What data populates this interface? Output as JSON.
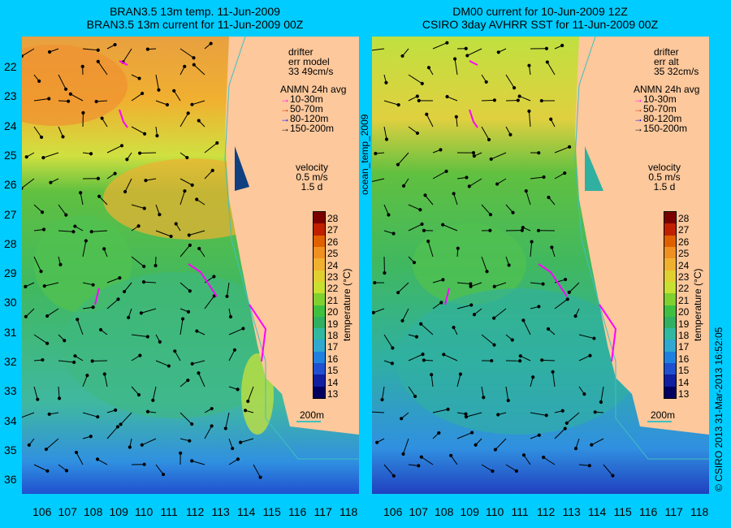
{
  "left_panel": {
    "title_line1": "BRAN3.5 13m temp. 11-Jun-2009",
    "title_line2": "BRAN3.5 13m current for 11-Jun-2009 00Z",
    "drifter_label": "drifter",
    "err_label": "err model",
    "speed_label": "33 49cm/s",
    "velocity_label": "velocity",
    "velocity_value": "0.5 m/s",
    "velocity_days": "1.5 d",
    "depth_label": "200m"
  },
  "right_panel": {
    "title_line1": "DM00 current for 10-Jun-2009 12Z",
    "title_line2": "CSIRO 3day AVHRR SST for 11-Jun-2009 00Z",
    "drifter_label": "drifter",
    "err_label": "err alt",
    "speed_label": "35 32cm/s",
    "velocity_label": "velocity",
    "velocity_value": "0.5 m/s",
    "velocity_days": "1.5 d",
    "depth_label": "200m"
  },
  "anmn_legend": {
    "title": "ANMN 24h avg",
    "items": [
      {
        "label": "10-30m",
        "color": "#ff00ff"
      },
      {
        "label": "50-70m",
        "color": "#cc3300"
      },
      {
        "label": "80-120m",
        "color": "#0000ff"
      },
      {
        "label": "150-200m",
        "color": "#000000"
      }
    ]
  },
  "colorbar": {
    "label": "temperature (°C)",
    "ticks": [
      "28",
      "27",
      "26",
      "25",
      "24",
      "23",
      "22",
      "21",
      "20",
      "19",
      "18",
      "17",
      "16",
      "15",
      "14",
      "13"
    ],
    "colors": [
      "#7a0000",
      "#c02000",
      "#e06000",
      "#f09020",
      "#f0b030",
      "#e0d030",
      "#c8e030",
      "#80d030",
      "#40c040",
      "#30b060",
      "#30b8a0",
      "#30a8d0",
      "#2080e0",
      "#2050d0",
      "#1020a0",
      "#000060"
    ]
  },
  "lat_labels": [
    "22",
    "23",
    "24",
    "25",
    "26",
    "27",
    "28",
    "29",
    "30",
    "31",
    "32",
    "33",
    "34",
    "35",
    "36"
  ],
  "lon_labels": [
    "106",
    "107",
    "108",
    "109",
    "110",
    "111",
    "112",
    "113",
    "114",
    "115",
    "116",
    "117",
    "118"
  ],
  "side_label": "ocean_temp_2009",
  "credit": "© CSIRO 2013   31-Mar-2013 16:52:05"
}
